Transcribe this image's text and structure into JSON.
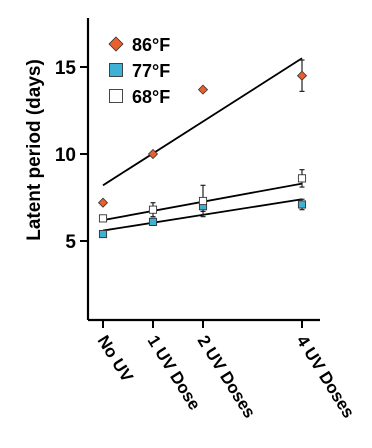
{
  "chart_data": {
    "type": "scatter",
    "title": "",
    "ylabel": "Latent period (days)",
    "xlabel": "",
    "categories": [
      "No UV",
      "1 UV Dose",
      "2 UV Doses",
      "4 UV Doses"
    ],
    "x": [
      0,
      1,
      2,
      4
    ],
    "ylim": [
      1,
      18
    ],
    "yticks": [
      5,
      10,
      15
    ],
    "legend_position": "top-left",
    "series": [
      {
        "name": "86°F",
        "marker": "diamond",
        "color": "#e8612c",
        "values": [
          7.2,
          10.0,
          13.7,
          14.5
        ],
        "errors": [
          0,
          0,
          0,
          0.9
        ],
        "fit": [
          8.2,
          15.5
        ]
      },
      {
        "name": "77°F",
        "marker": "square",
        "color": "#3fb1d4",
        "values": [
          5.4,
          6.1,
          7.0,
          7.1
        ],
        "errors": [
          0,
          0.2,
          0.3,
          0.3
        ],
        "fit": [
          5.6,
          7.4
        ]
      },
      {
        "name": "68°F",
        "marker": "square",
        "color": "#ffffff",
        "values": [
          6.3,
          6.8,
          7.3,
          8.6
        ],
        "errors": [
          0,
          0.4,
          0.9,
          0.5
        ],
        "fit": [
          6.2,
          8.3
        ]
      }
    ]
  }
}
